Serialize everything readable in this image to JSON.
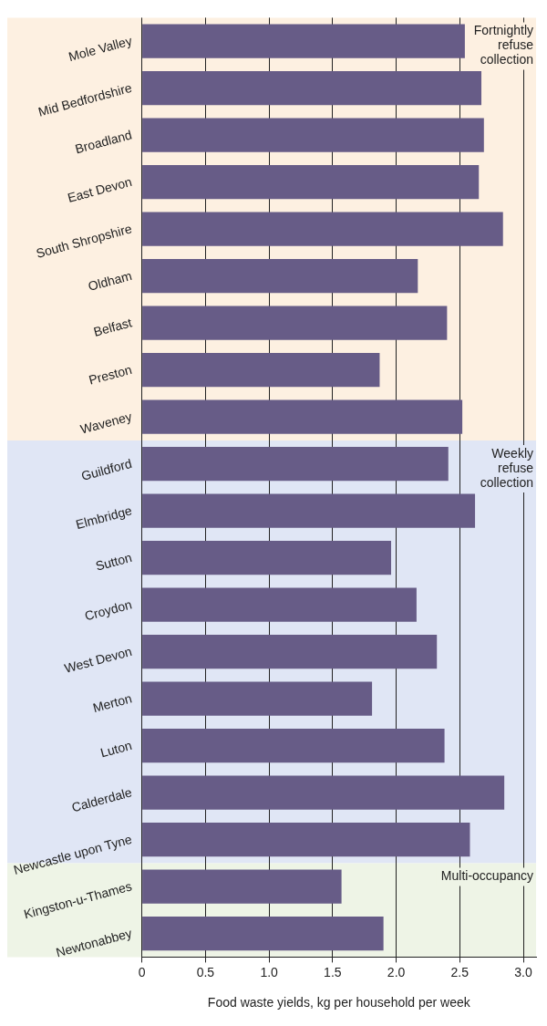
{
  "chart_data": {
    "type": "bar",
    "orientation": "horizontal",
    "xlabel": "Food waste yields, kg per household per week",
    "categories": [
      "Mole Valley",
      "Mid Bedfordshire",
      "Broadland",
      "East Devon",
      "South Shropshire",
      "Oldham",
      "Belfast",
      "Preston",
      "Waveney",
      "Guildford",
      "Elmbridge",
      "Sutton",
      "Croydon",
      "West Devon",
      "Merton",
      "Luton",
      "Calderdale",
      "Newcastle upon Tyne",
      "Kingston-u-Thames",
      "Newtonabbey"
    ],
    "values": [
      2.54,
      2.67,
      2.69,
      2.65,
      2.84,
      2.17,
      2.4,
      1.87,
      2.52,
      2.41,
      2.62,
      1.96,
      2.16,
      2.32,
      1.81,
      2.38,
      2.85,
      2.58,
      1.57,
      1.9
    ],
    "color": "#675c87",
    "xlim": [
      0,
      3.1
    ],
    "xticks": [
      0,
      0.5,
      {
        "value": 1,
        "label": "1.0"
      },
      1.5,
      {
        "value": 2,
        "label": "2.0"
      },
      2.5,
      {
        "value": 3,
        "label": "3.0"
      }
    ],
    "grid": "x",
    "bands": [
      {
        "axis": "y",
        "from": "Mole Valley",
        "to": "Waveney",
        "label": "Fortnightly refuse collection",
        "color": "#fdf0e1"
      },
      {
        "axis": "y",
        "from": "Guildford",
        "to": "Newcastle upon Tyne",
        "label": "Weekly refuse collection",
        "color": "#e0e6f5"
      },
      {
        "axis": "y",
        "from": "Kingston-u-Thames",
        "to": "Newtonabbey",
        "label": "Multi-occupancy",
        "color": "#eef4e6"
      }
    ]
  }
}
